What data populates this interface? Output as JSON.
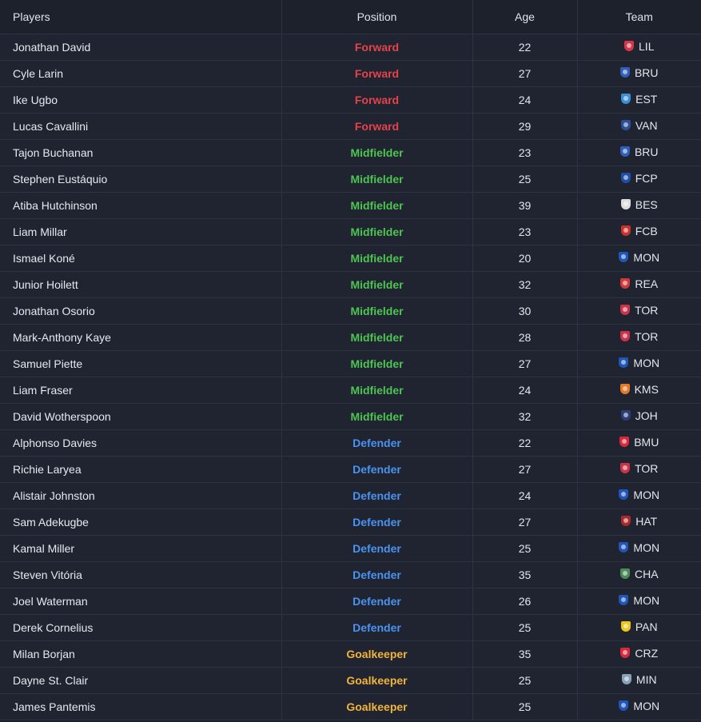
{
  "headers": {
    "players": "Players",
    "position": "Position",
    "age": "Age",
    "team": "Team"
  },
  "position_colors": {
    "Forward": "#e5424a",
    "Midfielder": "#4ec451",
    "Defender": "#4a93f0",
    "Goalkeeper": "#f2b43a"
  },
  "rows": [
    {
      "player": "Jonathan David",
      "position": "Forward",
      "age": "22",
      "team": "LIL",
      "crest_icon": "lille-crest-icon",
      "crest_color": "#d8354a"
    },
    {
      "player": "Cyle Larin",
      "position": "Forward",
      "age": "27",
      "team": "BRU",
      "crest_icon": "brugge-crest-icon",
      "crest_color": "#2f5fb8"
    },
    {
      "player": "Ike Ugbo",
      "position": "Forward",
      "age": "24",
      "team": "EST",
      "crest_icon": "troyes-crest-icon",
      "crest_color": "#3a8fd8"
    },
    {
      "player": "Lucas Cavallini",
      "position": "Forward",
      "age": "29",
      "team": "VAN",
      "crest_icon": "vancouver-crest-icon",
      "crest_color": "#2c4f94"
    },
    {
      "player": "Tajon Buchanan",
      "position": "Midfielder",
      "age": "23",
      "team": "BRU",
      "crest_icon": "brugge-crest-icon",
      "crest_color": "#2f5fb8"
    },
    {
      "player": "Stephen Eustáquio",
      "position": "Midfielder",
      "age": "25",
      "team": "FCP",
      "crest_icon": "porto-crest-icon",
      "crest_color": "#1f4fa8"
    },
    {
      "player": "Atiba Hutchinson",
      "position": "Midfielder",
      "age": "39",
      "team": "BES",
      "crest_icon": "besiktas-crest-icon",
      "crest_color": "#dddddd"
    },
    {
      "player": "Liam Millar",
      "position": "Midfielder",
      "age": "23",
      "team": "FCB",
      "crest_icon": "basel-crest-icon",
      "crest_color": "#c8322c"
    },
    {
      "player": "Ismael Koné",
      "position": "Midfielder",
      "age": "20",
      "team": "MON",
      "crest_icon": "montreal-crest-icon",
      "crest_color": "#1f56b8"
    },
    {
      "player": "Junior Hoilett",
      "position": "Midfielder",
      "age": "32",
      "team": "REA",
      "crest_icon": "reading-crest-icon",
      "crest_color": "#d13a3a"
    },
    {
      "player": "Jonathan Osorio",
      "position": "Midfielder",
      "age": "30",
      "team": "TOR",
      "crest_icon": "toronto-crest-icon",
      "crest_color": "#c9344a"
    },
    {
      "player": "Mark-Anthony Kaye",
      "position": "Midfielder",
      "age": "28",
      "team": "TOR",
      "crest_icon": "toronto-crest-icon",
      "crest_color": "#c9344a"
    },
    {
      "player": "Samuel Piette",
      "position": "Midfielder",
      "age": "27",
      "team": "MON",
      "crest_icon": "montreal-crest-icon",
      "crest_color": "#1f56b8"
    },
    {
      "player": "Liam Fraser",
      "position": "Midfielder",
      "age": "24",
      "team": "KMS",
      "crest_icon": "kasimpasa-crest-icon",
      "crest_color": "#e37a2a"
    },
    {
      "player": "David Wotherspoon",
      "position": "Midfielder",
      "age": "32",
      "team": "JOH",
      "crest_icon": "st-johnstone-crest-icon",
      "crest_color": "#2a3f78"
    },
    {
      "player": "Alphonso Davies",
      "position": "Defender",
      "age": "22",
      "team": "BMU",
      "crest_icon": "bayern-crest-icon",
      "crest_color": "#d8283c"
    },
    {
      "player": "Richie Laryea",
      "position": "Defender",
      "age": "27",
      "team": "TOR",
      "crest_icon": "toronto-crest-icon",
      "crest_color": "#c9344a"
    },
    {
      "player": "Alistair Johnston",
      "position": "Defender",
      "age": "24",
      "team": "MON",
      "crest_icon": "montreal-crest-icon",
      "crest_color": "#1f56b8"
    },
    {
      "player": "Sam Adekugbe",
      "position": "Defender",
      "age": "27",
      "team": "HAT",
      "crest_icon": "hatayspor-crest-icon",
      "crest_color": "#a82a2a"
    },
    {
      "player": "Kamal Miller",
      "position": "Defender",
      "age": "25",
      "team": "MON",
      "crest_icon": "montreal-crest-icon",
      "crest_color": "#1f56b8"
    },
    {
      "player": "Steven Vitória",
      "position": "Defender",
      "age": "35",
      "team": "CHA",
      "crest_icon": "chaves-crest-icon",
      "crest_color": "#4c8a5a"
    },
    {
      "player": "Joel Waterman",
      "position": "Defender",
      "age": "26",
      "team": "MON",
      "crest_icon": "montreal-crest-icon",
      "crest_color": "#1f56b8"
    },
    {
      "player": "Derek Cornelius",
      "position": "Defender",
      "age": "25",
      "team": "PAN",
      "crest_icon": "panetolikos-crest-icon",
      "crest_color": "#e8c61c"
    },
    {
      "player": "Milan Borjan",
      "position": "Goalkeeper",
      "age": "35",
      "team": "CRZ",
      "crest_icon": "crvena-zvezda-crest-icon",
      "crest_color": "#d8283c"
    },
    {
      "player": "Dayne St. Clair",
      "position": "Goalkeeper",
      "age": "25",
      "team": "MIN",
      "crest_icon": "minnesota-crest-icon",
      "crest_color": "#8aa0b8"
    },
    {
      "player": "James Pantemis",
      "position": "Goalkeeper",
      "age": "25",
      "team": "MON",
      "crest_icon": "montreal-crest-icon",
      "crest_color": "#1f56b8"
    }
  ]
}
